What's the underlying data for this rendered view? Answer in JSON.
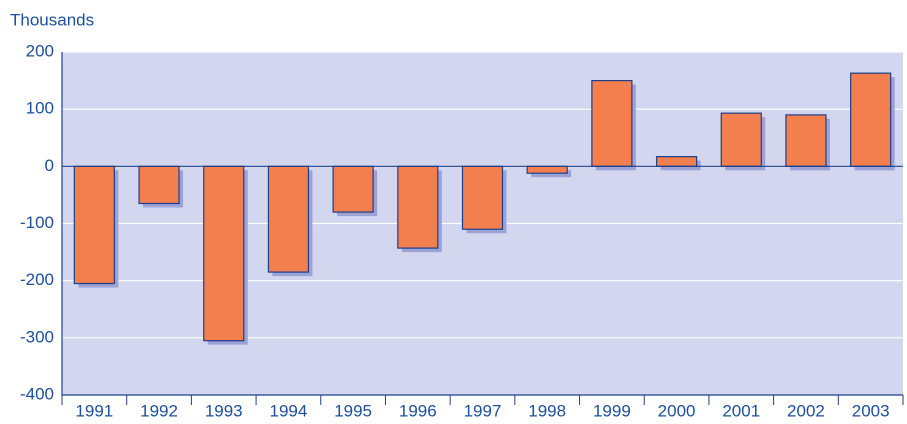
{
  "chart_data": {
    "type": "bar",
    "y_label": "Thousands",
    "categories": [
      "1991",
      "1992",
      "1993",
      "1994",
      "1995",
      "1996",
      "1997",
      "1998",
      "1999",
      "2000",
      "2001",
      "2002",
      "2003"
    ],
    "values": [
      -205,
      -65,
      -305,
      -185,
      -80,
      -143,
      -110,
      -12,
      150,
      17,
      93,
      90,
      163
    ],
    "color": "#f37f4f",
    "plot_background": "#d2d6ee",
    "shadow_color": "#9aa2d6",
    "ylim": [
      -400,
      200
    ],
    "yticks": [
      -400,
      -300,
      -200,
      -100,
      0,
      100,
      200
    ],
    "grid": true
  }
}
